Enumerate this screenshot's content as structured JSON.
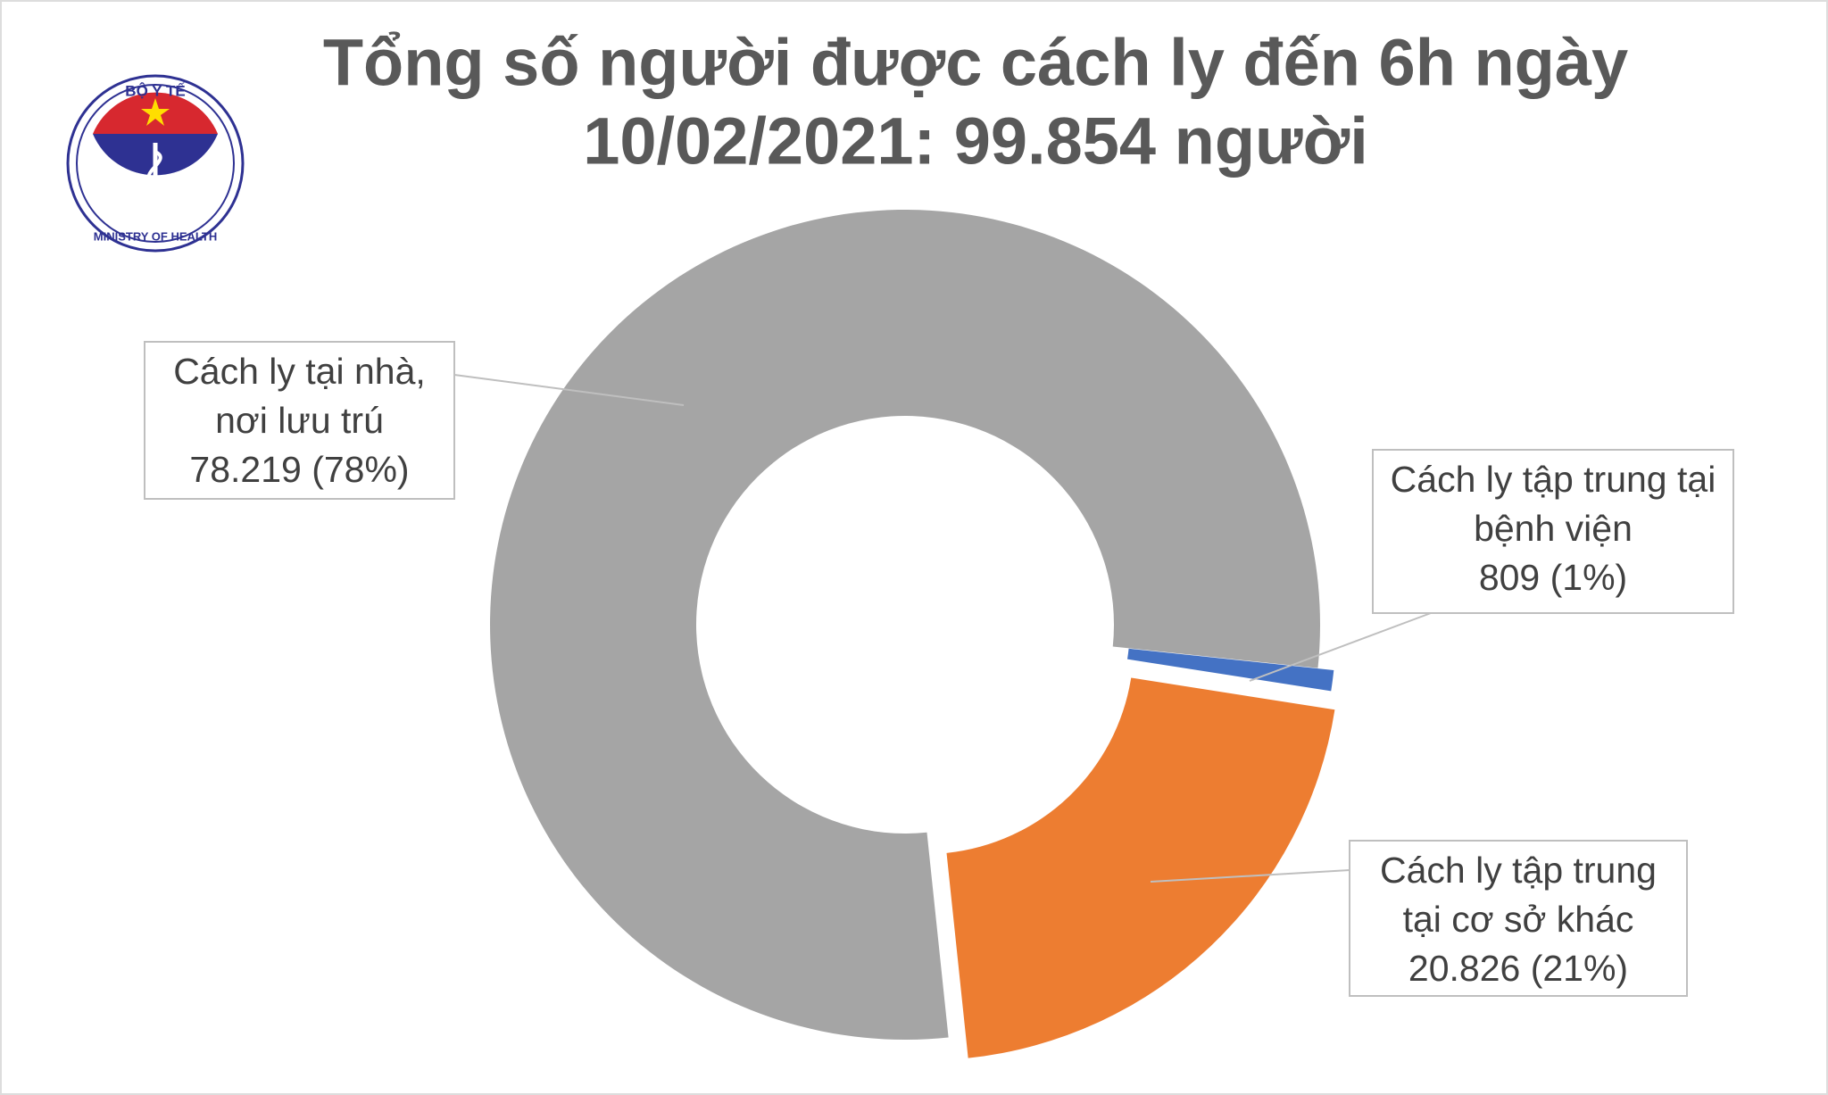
{
  "logo": {
    "top": "BỘ Y TẾ",
    "bottom": "MINISTRY OF HEALTH"
  },
  "chart_data": {
    "type": "donut",
    "title": [
      "Tổng số người được cách ly đến 6h ngày",
      "10/02/2021: 99.854 người"
    ],
    "categories": [
      [
        "Cách ly tại nhà,",
        "nơi lưu trú"
      ],
      [
        "Cách ly tập trung tại",
        "bệnh viện"
      ],
      [
        "Cách ly tập trung",
        "tại cơ sở khác"
      ]
    ],
    "values": [
      78219,
      809,
      20826
    ],
    "value_labels": [
      "78.219 (78%)",
      "809 (1%)",
      "20.826 (21%)"
    ],
    "colors": [
      "#a5a5a5",
      "#4472c4",
      "#ed7d31"
    ]
  }
}
